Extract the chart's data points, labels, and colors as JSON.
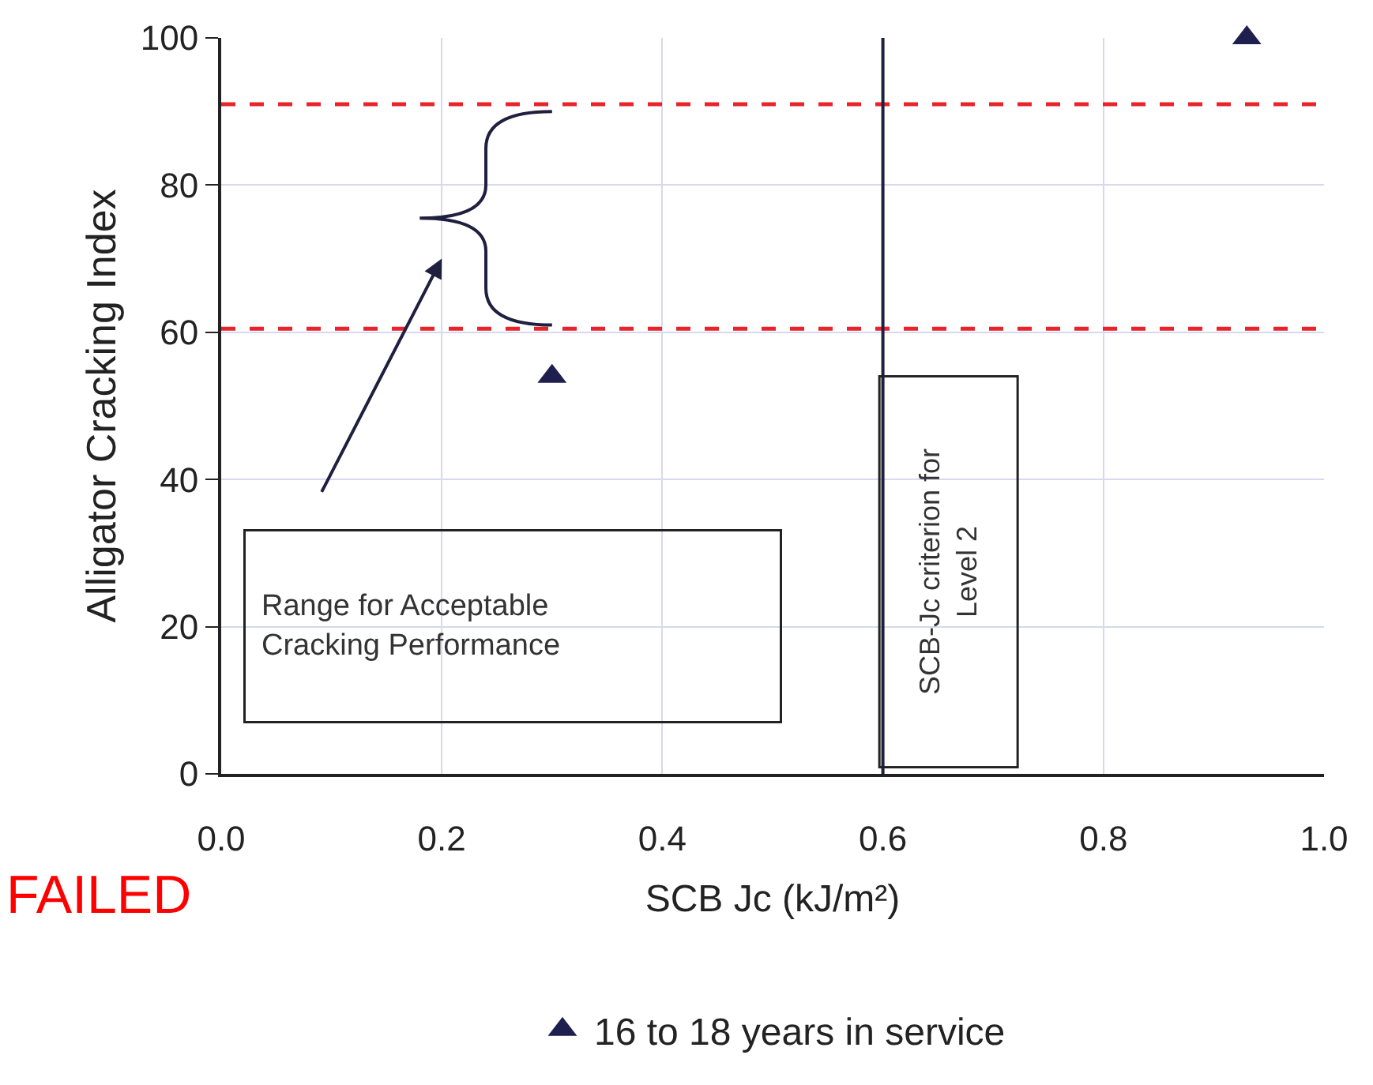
{
  "chart_data": {
    "type": "scatter",
    "xlabel": "SCB Jc (kJ/m²)",
    "ylabel": "Alligator Cracking Index",
    "xlim": [
      0,
      1
    ],
    "xticks": [
      {
        "value": 0,
        "label": "0.0"
      },
      0.2,
      0.4,
      0.6,
      0.8,
      {
        "value": 1,
        "label": "1.0"
      }
    ],
    "ylim": [
      0,
      100
    ],
    "yticks": [
      0,
      20,
      40,
      60,
      80,
      100
    ],
    "grid": true,
    "marker": "triangle",
    "legend": "bottom",
    "series": [
      {
        "name": "16 to 18 years in service",
        "color": "#1f1f4f",
        "x": [
          0.3,
          0.93
        ],
        "values": [
          54,
          100
        ]
      }
    ],
    "ref_lines": [
      {
        "axis": "y",
        "value": 91,
        "color": "#e8242a",
        "line_style": "dashed"
      },
      {
        "axis": "y",
        "value": 60.5,
        "color": "#e8242a",
        "line_style": "dashed"
      },
      {
        "axis": "x",
        "value": 0.6,
        "color": "#1f1f3f",
        "line_style": "solid"
      }
    ],
    "annotations": [
      "Range for Acceptable\nCracking Performance",
      "SCB-Jc criterion for\nLevel 2",
      "FAILED"
    ]
  }
}
